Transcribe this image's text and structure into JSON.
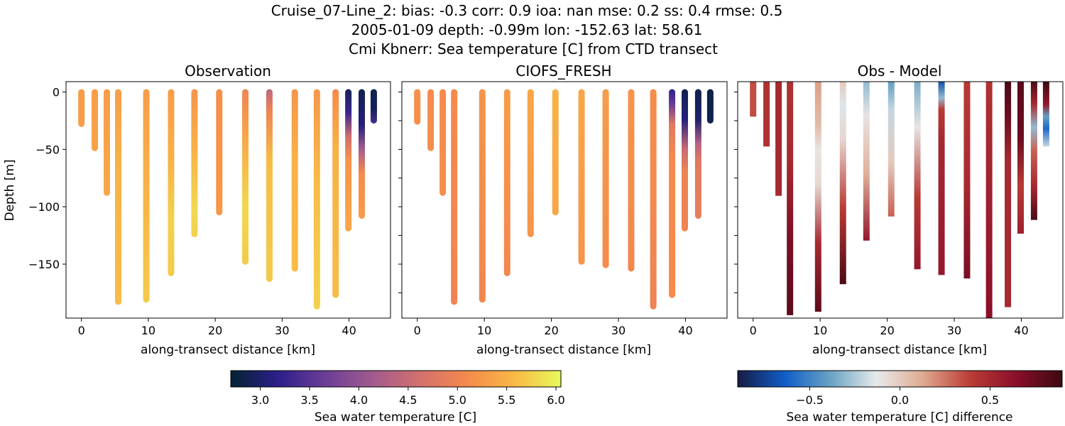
{
  "title_lines": [
    "Cruise_07-Line_2: bias: -0.3  corr: 0.9  ioa: nan  mse: 0.2  ss: 0.4  rmse: 0.5",
    "2005-01-09 depth: -0.99m lon: -152.63 lat: 58.61",
    "Cmi Kbnerr: Sea temperature [C] from CTD transect"
  ],
  "chart_data": [
    {
      "type": "scatter",
      "title": "Observation",
      "xlabel": "along-transect distance [km]",
      "ylabel": "Depth [m]",
      "xlim": [
        -2.3,
        46.2
      ],
      "ylim": [
        -197,
        9
      ],
      "xticks": [
        0,
        10,
        20,
        30,
        40
      ],
      "yticks": [
        0,
        -50,
        -100,
        -150
      ],
      "colormap": "thermal",
      "clim": [
        2.7,
        6.05
      ],
      "stations": [
        {
          "x": 0.0,
          "bottom": -28,
          "profile": [
            [
              0,
              5.3
            ],
            [
              -28,
              5.3
            ]
          ]
        },
        {
          "x": 2.0,
          "bottom": -49,
          "profile": [
            [
              0,
              5.3
            ],
            [
              -49,
              5.35
            ]
          ]
        },
        {
          "x": 3.8,
          "bottom": -88,
          "profile": [
            [
              0,
              5.3
            ],
            [
              -88,
              5.4
            ]
          ]
        },
        {
          "x": 5.5,
          "bottom": -183,
          "profile": [
            [
              0,
              5.3
            ],
            [
              -60,
              5.5
            ],
            [
              -120,
              5.55
            ],
            [
              -183,
              5.6
            ]
          ]
        },
        {
          "x": 9.7,
          "bottom": -181,
          "profile": [
            [
              0,
              5.3
            ],
            [
              -60,
              5.45
            ],
            [
              -120,
              5.6
            ],
            [
              -181,
              5.7
            ]
          ]
        },
        {
          "x": 13.4,
          "bottom": -158,
          "profile": [
            [
              0,
              5.3
            ],
            [
              -60,
              5.5
            ],
            [
              -110,
              5.75
            ],
            [
              -158,
              5.7
            ]
          ]
        },
        {
          "x": 16.9,
          "bottom": -124,
          "profile": [
            [
              0,
              5.2
            ],
            [
              -50,
              5.5
            ],
            [
              -100,
              5.8
            ],
            [
              -124,
              5.75
            ]
          ]
        },
        {
          "x": 20.6,
          "bottom": -105,
          "profile": [
            [
              0,
              5.15
            ],
            [
              -60,
              5.2
            ],
            [
              -105,
              5.25
            ]
          ]
        },
        {
          "x": 24.5,
          "bottom": -148,
          "profile": [
            [
              0,
              5.0
            ],
            [
              -40,
              5.4
            ],
            [
              -100,
              5.8
            ],
            [
              -148,
              5.7
            ]
          ]
        },
        {
          "x": 28.1,
          "bottom": -163,
          "profile": [
            [
              0,
              4.4
            ],
            [
              -18,
              5.0
            ],
            [
              -60,
              5.6
            ],
            [
              -163,
              5.7
            ]
          ]
        },
        {
          "x": 31.9,
          "bottom": -154,
          "profile": [
            [
              0,
              5.2
            ],
            [
              -60,
              5.5
            ],
            [
              -154,
              5.6
            ]
          ]
        },
        {
          "x": 35.2,
          "bottom": -187,
          "profile": [
            [
              0,
              5.25
            ],
            [
              -80,
              5.6
            ],
            [
              -187,
              5.75
            ]
          ]
        },
        {
          "x": 38.0,
          "bottom": -177,
          "profile": [
            [
              0,
              5.1
            ],
            [
              -50,
              5.5
            ],
            [
              -177,
              5.6
            ]
          ]
        },
        {
          "x": 39.9,
          "bottom": -119,
          "profile": [
            [
              0,
              2.9
            ],
            [
              -20,
              3.3
            ],
            [
              -40,
              4.6
            ],
            [
              -60,
              5.2
            ],
            [
              -119,
              5.4
            ]
          ]
        },
        {
          "x": 41.9,
          "bottom": -108,
          "profile": [
            [
              0,
              2.85
            ],
            [
              -30,
              3.1
            ],
            [
              -50,
              4.2
            ],
            [
              -70,
              5.1
            ],
            [
              -108,
              5.3
            ]
          ]
        },
        {
          "x": 43.7,
          "bottom": -25,
          "profile": [
            [
              0,
              2.85
            ],
            [
              -15,
              2.9
            ],
            [
              -25,
              3.4
            ]
          ]
        }
      ]
    },
    {
      "type": "scatter",
      "title": "CIOFS_FRESH",
      "xlabel": "along-transect distance [km]",
      "ylabel": "",
      "xlim": [
        -2.3,
        46.2
      ],
      "ylim": [
        -197,
        9
      ],
      "xticks": [
        0,
        10,
        20,
        30,
        40
      ],
      "yticks": [
        0,
        -50,
        -100,
        -150
      ],
      "colormap": "thermal",
      "clim": [
        2.7,
        6.05
      ],
      "stations": [
        {
          "x": 0.0,
          "bottom": -26,
          "profile": [
            [
              0,
              5.15
            ],
            [
              -26,
              5.15
            ]
          ]
        },
        {
          "x": 2.0,
          "bottom": -49,
          "profile": [
            [
              0,
              5.1
            ],
            [
              -49,
              5.15
            ]
          ]
        },
        {
          "x": 3.8,
          "bottom": -88,
          "profile": [
            [
              0,
              5.1
            ],
            [
              -88,
              5.15
            ]
          ]
        },
        {
          "x": 5.5,
          "bottom": -183,
          "profile": [
            [
              0,
              5.1
            ],
            [
              -183,
              5.0
            ]
          ]
        },
        {
          "x": 9.7,
          "bottom": -181,
          "profile": [
            [
              0,
              5.2
            ],
            [
              -181,
              5.05
            ]
          ]
        },
        {
          "x": 13.4,
          "bottom": -158,
          "profile": [
            [
              0,
              5.3
            ],
            [
              -158,
              5.05
            ]
          ]
        },
        {
          "x": 16.9,
          "bottom": -124,
          "profile": [
            [
              0,
              5.4
            ],
            [
              -124,
              5.2
            ]
          ]
        },
        {
          "x": 20.6,
          "bottom": -105,
          "profile": [
            [
              0,
              5.5
            ],
            [
              -105,
              5.4
            ]
          ]
        },
        {
          "x": 24.5,
          "bottom": -148,
          "profile": [
            [
              0,
              5.4
            ],
            [
              -148,
              5.2
            ]
          ]
        },
        {
          "x": 28.1,
          "bottom": -151,
          "profile": [
            [
              0,
              5.3
            ],
            [
              -151,
              5.1
            ]
          ]
        },
        {
          "x": 31.9,
          "bottom": -154,
          "profile": [
            [
              0,
              5.2
            ],
            [
              -154,
              5.05
            ]
          ]
        },
        {
          "x": 35.2,
          "bottom": -187,
          "profile": [
            [
              0,
              5.15
            ],
            [
              -187,
              5.0
            ]
          ]
        },
        {
          "x": 38.0,
          "bottom": -177,
          "profile": [
            [
              0,
              3.2
            ],
            [
              -12,
              3.6
            ],
            [
              -30,
              4.8
            ],
            [
              -60,
              5.1
            ],
            [
              -177,
              5.1
            ]
          ]
        },
        {
          "x": 39.9,
          "bottom": -119,
          "profile": [
            [
              0,
              2.85
            ],
            [
              -25,
              3.1
            ],
            [
              -50,
              4.5
            ],
            [
              -70,
              5.0
            ],
            [
              -119,
              5.0
            ]
          ]
        },
        {
          "x": 41.9,
          "bottom": -108,
          "profile": [
            [
              0,
              2.85
            ],
            [
              -25,
              3.0
            ],
            [
              -45,
              4.3
            ],
            [
              -60,
              4.8
            ],
            [
              -108,
              4.9
            ]
          ]
        },
        {
          "x": 43.7,
          "bottom": -25,
          "profile": [
            [
              0,
              2.8
            ],
            [
              -25,
              2.85
            ]
          ]
        }
      ]
    },
    {
      "type": "scatter",
      "title": "Obs - Model",
      "xlabel": "along-transect distance [km]",
      "ylabel": "",
      "xlim": [
        -2.3,
        46.2
      ],
      "ylim": [
        -197,
        9
      ],
      "xticks": [
        0,
        10,
        20,
        30,
        40
      ],
      "yticks": [
        0,
        -50,
        -100,
        -150
      ],
      "colormap": "balance",
      "clim": [
        -0.9,
        0.9
      ],
      "stations": [
        {
          "x": 0.0,
          "bottom": -19,
          "profile": [
            [
              9,
              0.35
            ],
            [
              -19,
              0.35
            ]
          ]
        },
        {
          "x": 2.0,
          "bottom": -45,
          "profile": [
            [
              9,
              0.45
            ],
            [
              -45,
              0.45
            ]
          ]
        },
        {
          "x": 3.8,
          "bottom": -88,
          "profile": [
            [
              9,
              0.5
            ],
            [
              -88,
              0.5
            ]
          ]
        },
        {
          "x": 5.5,
          "bottom": -192,
          "profile": [
            [
              9,
              0.45
            ],
            [
              -60,
              0.5
            ],
            [
              -130,
              0.7
            ],
            [
              -192,
              0.8
            ]
          ]
        },
        {
          "x": 9.7,
          "bottom": -189,
          "profile": [
            [
              9,
              0.15
            ],
            [
              -30,
              0.05
            ],
            [
              -50,
              -0.1
            ],
            [
              -80,
              -0.05
            ],
            [
              -130,
              0.5
            ],
            [
              -189,
              0.8
            ]
          ]
        },
        {
          "x": 13.4,
          "bottom": -165,
          "profile": [
            [
              9,
              0.0
            ],
            [
              -10,
              -0.15
            ],
            [
              -40,
              -0.05
            ],
            [
              -100,
              0.4
            ],
            [
              -165,
              0.85
            ]
          ]
        },
        {
          "x": 16.9,
          "bottom": -127,
          "profile": [
            [
              9,
              -0.3
            ],
            [
              -20,
              -0.1
            ],
            [
              -70,
              0.1
            ],
            [
              -127,
              0.6
            ]
          ]
        },
        {
          "x": 20.6,
          "bottom": -106,
          "profile": [
            [
              9,
              -0.4
            ],
            [
              -15,
              -0.2
            ],
            [
              -60,
              0.0
            ],
            [
              -106,
              0.3
            ]
          ]
        },
        {
          "x": 24.5,
          "bottom": -152,
          "profile": [
            [
              9,
              -0.35
            ],
            [
              -30,
              -0.1
            ],
            [
              -90,
              0.4
            ],
            [
              -152,
              0.6
            ]
          ]
        },
        {
          "x": 28.1,
          "bottom": -157,
          "profile": [
            [
              9,
              -0.7
            ],
            [
              -5,
              -0.3
            ],
            [
              -15,
              0.4
            ],
            [
              -40,
              0.5
            ],
            [
              -157,
              0.6
            ]
          ]
        },
        {
          "x": 31.9,
          "bottom": -160,
          "profile": [
            [
              9,
              0.4
            ],
            [
              -80,
              0.5
            ],
            [
              -160,
              0.7
            ]
          ]
        },
        {
          "x": 35.2,
          "bottom": -197,
          "profile": [
            [
              9,
              0.45
            ],
            [
              -100,
              0.55
            ],
            [
              -197,
              0.65
            ]
          ]
        },
        {
          "x": 38.0,
          "bottom": -185,
          "profile": [
            [
              9,
              0.85
            ],
            [
              -20,
              0.75
            ],
            [
              -60,
              0.5
            ],
            [
              -185,
              0.5
            ]
          ]
        },
        {
          "x": 39.9,
          "bottom": -121,
          "profile": [
            [
              9,
              0.8
            ],
            [
              -40,
              0.75
            ],
            [
              -80,
              0.4
            ],
            [
              -121,
              0.55
            ]
          ]
        },
        {
          "x": 41.9,
          "bottom": -109,
          "profile": [
            [
              9,
              0.85
            ],
            [
              -10,
              0.5
            ],
            [
              -30,
              -0.3
            ],
            [
              -50,
              0.3
            ],
            [
              -80,
              0.5
            ],
            [
              -109,
              0.85
            ]
          ]
        },
        {
          "x": 43.7,
          "bottom": -45,
          "profile": [
            [
              9,
              0.9
            ],
            [
              -10,
              0.6
            ],
            [
              -20,
              -0.4
            ],
            [
              -30,
              -0.6
            ],
            [
              -45,
              -0.2
            ]
          ]
        }
      ]
    }
  ],
  "colorbars": [
    {
      "label": "Sea water temperature [C]",
      "colormap": "thermal",
      "clim": [
        2.7,
        6.05
      ],
      "ticks": [
        3.0,
        3.5,
        4.0,
        4.5,
        5.0,
        5.5,
        6.0
      ],
      "tick_labels": [
        "3.0",
        "3.5",
        "4.0",
        "4.5",
        "5.0",
        "5.5",
        "6.0"
      ]
    },
    {
      "label": "Sea water temperature [C] difference",
      "colormap": "balance",
      "clim": [
        -0.9,
        0.9
      ],
      "ticks": [
        -0.5,
        0.0,
        0.5
      ],
      "tick_labels": [
        "−0.5",
        "0.0",
        "0.5"
      ]
    }
  ],
  "colormaps": {
    "thermal": [
      "#042333",
      "#2c1e8a",
      "#6c3d96",
      "#a05b8f",
      "#d3706e",
      "#f5894c",
      "#f9b845",
      "#e8fa5b"
    ],
    "balance": [
      "#181c43",
      "#0f5cc8",
      "#68a3c3",
      "#e8ebec",
      "#dfa98f",
      "#bb3d35",
      "#8b0f2a",
      "#3c0911"
    ]
  }
}
